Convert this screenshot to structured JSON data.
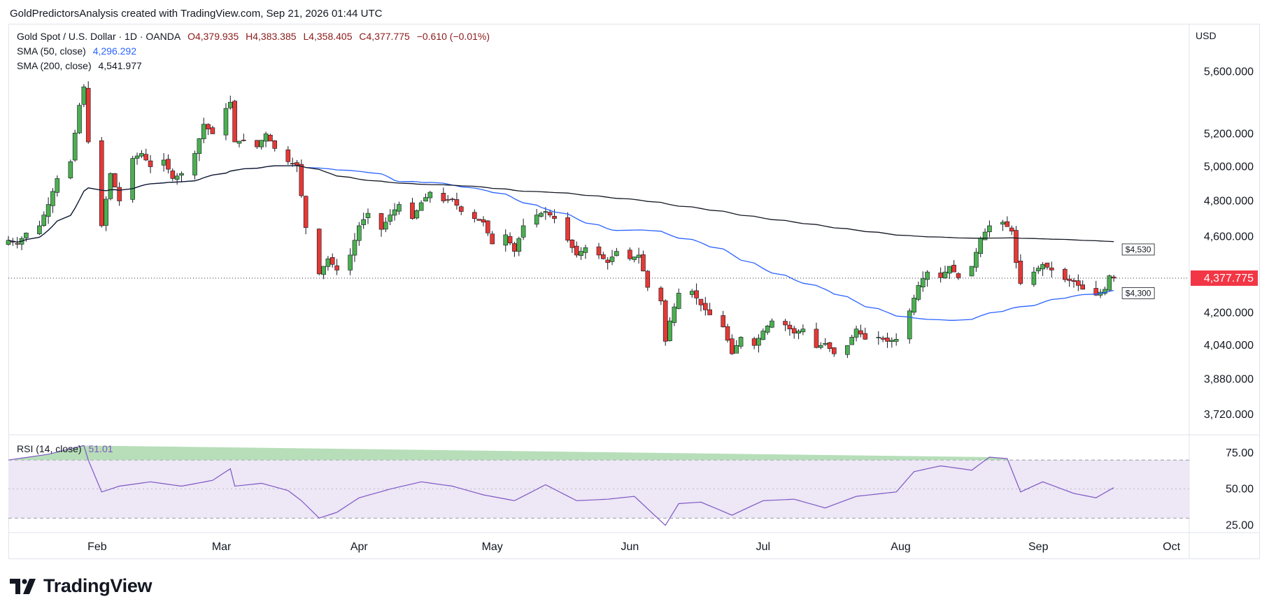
{
  "credit": "GoldPredictorsAnalysis created with TradingView.com, Sep 21, 2026 01:44 UTC",
  "legend": {
    "symbol": "Gold Spot / U.S. Dollar · 1D · OANDA",
    "open": "O4,379.935",
    "high": "H4,383.385",
    "low": "L4,358.405",
    "close": "C4,377.775",
    "change": "−0.610 (−0.01%)",
    "sma50_label": "SMA (50, close)",
    "sma50_value": "4,296.292",
    "sma200_label": "SMA (200, close)",
    "sma200_value": "4,541.977",
    "rsi_label": "RSI (14, close)",
    "rsi_value": "51.01"
  },
  "currency": "USD",
  "branding": "TradingView",
  "colors": {
    "up": "#4caf50",
    "down": "#e53935",
    "sma50": "#2962ff",
    "sma200": "#131722",
    "rsi": "#7e57c2",
    "rsi_band": "#ede7f6",
    "last_price_tag": "#f23645"
  },
  "chart_data": {
    "type": "candlestick",
    "price_axis": {
      "scale": "log",
      "ticks": [
        5600,
        5200,
        5000,
        4800,
        4600,
        4200,
        4040,
        3880,
        3720
      ],
      "tick_labels": [
        "5,600.000",
        "5,200.000",
        "5,000.000",
        "4,800.000",
        "4,600.000",
        "4,200.000",
        "4,040.000",
        "3,880.000",
        "3,720.000"
      ]
    },
    "last_price": 4377.775,
    "last_price_label": "4,377.775",
    "annotations": [
      {
        "label": "$4,530",
        "date": "2026-09-18",
        "value": 4530
      },
      {
        "label": "$4,300",
        "date": "2026-09-18",
        "value": 4300
      }
    ],
    "x_axis": {
      "range": [
        "2026-01-12",
        "2026-10-05"
      ],
      "ticks": [
        {
          "label": "Feb",
          "date": "2026-02-01"
        },
        {
          "label": "Mar",
          "date": "2026-03-01"
        },
        {
          "label": "Apr",
          "date": "2026-04-01"
        },
        {
          "label": "May",
          "date": "2026-05-01"
        },
        {
          "label": "Jun",
          "date": "2026-06-01"
        },
        {
          "label": "Jul",
          "date": "2026-07-01"
        },
        {
          "label": "Aug",
          "date": "2026-08-01"
        },
        {
          "label": "Sep",
          "date": "2026-09-01"
        },
        {
          "label": "Oct",
          "date": "2026-10-01"
        }
      ]
    },
    "close_keypoints": [
      [
        "2026-01-12",
        4580
      ],
      [
        "2026-01-14",
        4560
      ],
      [
        "2026-01-16",
        4620
      ],
      [
        "2026-01-19",
        4660
      ],
      [
        "2026-01-21",
        4780
      ],
      [
        "2026-01-23",
        4930
      ],
      [
        "2026-01-26",
        5030
      ],
      [
        "2026-01-28",
        5380
      ],
      [
        "2026-01-29",
        5500
      ],
      [
        "2026-01-30",
        5150
      ],
      [
        "2026-02-02",
        4660
      ],
      [
        "2026-02-04",
        4960
      ],
      [
        "2026-02-06",
        4800
      ],
      [
        "2026-02-09",
        5050
      ],
      [
        "2026-02-11",
        5080
      ],
      [
        "2026-02-13",
        5000
      ],
      [
        "2026-02-16",
        5040
      ],
      [
        "2026-02-18",
        4930
      ],
      [
        "2026-02-20",
        4960
      ],
      [
        "2026-02-23",
        5080
      ],
      [
        "2026-02-25",
        5260
      ],
      [
        "2026-02-27",
        5200
      ],
      [
        "2026-03-02",
        5360
      ],
      [
        "2026-03-03",
        5400
      ],
      [
        "2026-03-04",
        5150
      ],
      [
        "2026-03-06",
        5160
      ],
      [
        "2026-03-09",
        5120
      ],
      [
        "2026-03-11",
        5200
      ],
      [
        "2026-03-13",
        5110
      ],
      [
        "2026-03-16",
        5030
      ],
      [
        "2026-03-18",
        5010
      ],
      [
        "2026-03-19",
        4830
      ],
      [
        "2026-03-20",
        4650
      ],
      [
        "2026-03-23",
        4400
      ],
      [
        "2026-03-25",
        4480
      ],
      [
        "2026-03-27",
        4420
      ],
      [
        "2026-03-30",
        4500
      ],
      [
        "2026-04-01",
        4660
      ],
      [
        "2026-04-03",
        4730
      ],
      [
        "2026-04-06",
        4640
      ],
      [
        "2026-04-08",
        4720
      ],
      [
        "2026-04-10",
        4780
      ],
      [
        "2026-04-13",
        4700
      ],
      [
        "2026-04-15",
        4790
      ],
      [
        "2026-04-17",
        4850
      ],
      [
        "2026-04-20",
        4800
      ],
      [
        "2026-04-22",
        4810
      ],
      [
        "2026-04-24",
        4740
      ],
      [
        "2026-04-27",
        4700
      ],
      [
        "2026-04-29",
        4680
      ],
      [
        "2026-05-01",
        4560
      ],
      [
        "2026-05-04",
        4610
      ],
      [
        "2026-05-06",
        4520
      ],
      [
        "2026-05-08",
        4660
      ],
      [
        "2026-05-11",
        4720
      ],
      [
        "2026-05-13",
        4740
      ],
      [
        "2026-05-15",
        4700
      ],
      [
        "2026-05-18",
        4580
      ],
      [
        "2026-05-20",
        4500
      ],
      [
        "2026-05-22",
        4540
      ],
      [
        "2026-05-25",
        4500
      ],
      [
        "2026-05-27",
        4460
      ],
      [
        "2026-05-29",
        4520
      ],
      [
        "2026-06-01",
        4480
      ],
      [
        "2026-06-03",
        4500
      ],
      [
        "2026-06-05",
        4330
      ],
      [
        "2026-06-08",
        4260
      ],
      [
        "2026-06-09",
        4060
      ],
      [
        "2026-06-10",
        4160
      ],
      [
        "2026-06-12",
        4300
      ],
      [
        "2026-06-15",
        4310
      ],
      [
        "2026-06-17",
        4240
      ],
      [
        "2026-06-19",
        4190
      ],
      [
        "2026-06-22",
        4130
      ],
      [
        "2026-06-24",
        4000
      ],
      [
        "2026-06-26",
        4080
      ],
      [
        "2026-06-29",
        4040
      ],
      [
        "2026-07-01",
        4110
      ],
      [
        "2026-07-03",
        4160
      ],
      [
        "2026-07-06",
        4140
      ],
      [
        "2026-07-08",
        4100
      ],
      [
        "2026-07-10",
        4120
      ],
      [
        "2026-07-13",
        4030
      ],
      [
        "2026-07-15",
        4050
      ],
      [
        "2026-07-17",
        4000
      ],
      [
        "2026-07-20",
        4040
      ],
      [
        "2026-07-22",
        4120
      ],
      [
        "2026-07-24",
        4070
      ],
      [
        "2026-07-27",
        4080
      ],
      [
        "2026-07-29",
        4060
      ],
      [
        "2026-07-31",
        4070
      ],
      [
        "2026-08-03",
        4210
      ],
      [
        "2026-08-05",
        4340
      ],
      [
        "2026-08-07",
        4410
      ],
      [
        "2026-08-10",
        4380
      ],
      [
        "2026-08-12",
        4440
      ],
      [
        "2026-08-14",
        4380
      ],
      [
        "2026-08-17",
        4440
      ],
      [
        "2026-08-19",
        4590
      ],
      [
        "2026-08-21",
        4660
      ],
      [
        "2026-08-24",
        4680
      ],
      [
        "2026-08-26",
        4630
      ],
      [
        "2026-08-27",
        4460
      ],
      [
        "2026-08-28",
        4350
      ],
      [
        "2026-08-31",
        4410
      ],
      [
        "2026-09-02",
        4450
      ],
      [
        "2026-09-04",
        4420
      ],
      [
        "2026-09-07",
        4370
      ],
      [
        "2026-09-09",
        4360
      ],
      [
        "2026-09-11",
        4320
      ],
      [
        "2026-09-14",
        4290
      ],
      [
        "2026-09-16",
        4320
      ],
      [
        "2026-09-17",
        4390
      ],
      [
        "2026-09-18",
        4377.775
      ]
    ],
    "rsi": {
      "last": 51.01,
      "ticks": [
        75,
        50,
        25
      ],
      "tick_labels": [
        "75.00",
        "50.00",
        "25.00"
      ],
      "bands": [
        70,
        30
      ],
      "keypoints": [
        [
          "2026-01-12",
          70
        ],
        [
          "2026-01-21",
          74
        ],
        [
          "2026-01-29",
          80
        ],
        [
          "2026-01-30",
          70
        ],
        [
          "2026-02-02",
          48
        ],
        [
          "2026-02-06",
          52
        ],
        [
          "2026-02-13",
          55
        ],
        [
          "2026-02-20",
          52
        ],
        [
          "2026-02-27",
          56
        ],
        [
          "2026-03-03",
          64
        ],
        [
          "2026-03-04",
          52
        ],
        [
          "2026-03-10",
          54
        ],
        [
          "2026-03-16",
          49
        ],
        [
          "2026-03-19",
          42
        ],
        [
          "2026-03-23",
          30
        ],
        [
          "2026-03-27",
          34
        ],
        [
          "2026-04-01",
          44
        ],
        [
          "2026-04-08",
          50
        ],
        [
          "2026-04-15",
          55
        ],
        [
          "2026-04-22",
          52
        ],
        [
          "2026-04-29",
          46
        ],
        [
          "2026-05-06",
          42
        ],
        [
          "2026-05-13",
          53
        ],
        [
          "2026-05-20",
          42
        ],
        [
          "2026-05-27",
          43
        ],
        [
          "2026-06-02",
          45
        ],
        [
          "2026-06-09",
          25
        ],
        [
          "2026-06-12",
          40
        ],
        [
          "2026-06-17",
          41
        ],
        [
          "2026-06-24",
          32
        ],
        [
          "2026-07-01",
          42
        ],
        [
          "2026-07-08",
          43
        ],
        [
          "2026-07-15",
          37
        ],
        [
          "2026-07-22",
          45
        ],
        [
          "2026-07-31",
          48
        ],
        [
          "2026-08-04",
          62
        ],
        [
          "2026-08-10",
          66
        ],
        [
          "2026-08-17",
          63
        ],
        [
          "2026-08-21",
          72
        ],
        [
          "2026-08-25",
          71
        ],
        [
          "2026-08-28",
          48
        ],
        [
          "2026-09-02",
          55
        ],
        [
          "2026-09-09",
          47
        ],
        [
          "2026-09-14",
          44
        ],
        [
          "2026-09-18",
          51.01
        ]
      ]
    }
  }
}
